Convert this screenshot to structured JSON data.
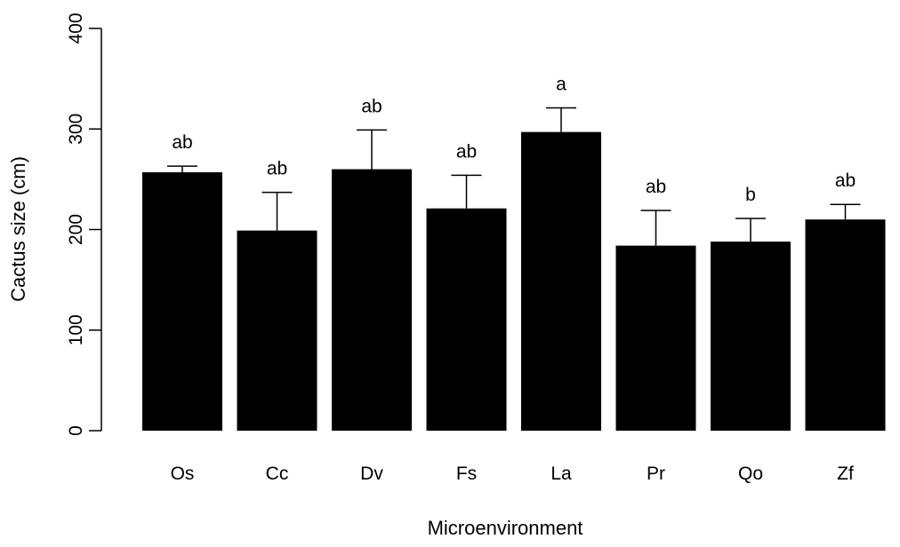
{
  "chart_data": {
    "type": "bar",
    "title": "",
    "xlabel": "Microenvironment",
    "ylabel": "Cactus size (cm)",
    "ylim": [
      0,
      400
    ],
    "yticks": [
      0,
      100,
      200,
      300,
      400
    ],
    "categories": [
      "Os",
      "Cc",
      "Dv",
      "Fs",
      "La",
      "Pr",
      "Qo",
      "Zf"
    ],
    "values": [
      257,
      199,
      260,
      221,
      297,
      184,
      188,
      210
    ],
    "error_upper": [
      263,
      237,
      299,
      254,
      321,
      219,
      211,
      225
    ],
    "significance_labels": [
      "ab",
      "ab",
      "ab",
      "ab",
      "a",
      "ab",
      "b",
      "ab"
    ],
    "bar_color": "#000000",
    "grid": false
  }
}
